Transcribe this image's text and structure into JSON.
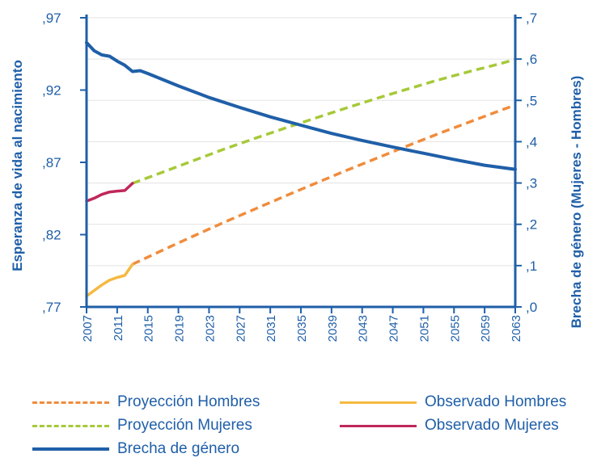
{
  "chart_data": {
    "type": "line",
    "xlabel": "",
    "ylabel_left": "Esperanza de vida al nacimiento",
    "ylabel_right": "Brecha de género (Mujeres - Hombres)",
    "xlim": [
      2007,
      2063
    ],
    "ylim_left": [
      0.77,
      0.97
    ],
    "ylim_right": [
      0.0,
      0.7
    ],
    "yticks_left": [
      ",77",
      ",82",
      ",87",
      ",92",
      ",97"
    ],
    "yticks_right": [
      ",0",
      ",1",
      ",2",
      ",3",
      ",4",
      ",5",
      ",6",
      ",7"
    ],
    "xticks": [
      "2007",
      "2011",
      "2015",
      "2019",
      "2023",
      "2027",
      "2031",
      "2035",
      "2039",
      "2043",
      "2047",
      "2051",
      "2055",
      "2059",
      "2063"
    ],
    "grid": "horizontal",
    "legend_position": "bottom",
    "series": [
      {
        "name": "Proyección Hombres",
        "axis": "left",
        "style": "dashed",
        "color": "#f08c3c",
        "x": [
          2013,
          2017,
          2021,
          2025,
          2029,
          2033,
          2037,
          2041,
          2045,
          2049,
          2053,
          2057,
          2061,
          2063
        ],
        "y": [
          0.7995,
          0.8094,
          0.8191,
          0.8286,
          0.8377,
          0.8468,
          0.8557,
          0.8645,
          0.8731,
          0.8816,
          0.8899,
          0.8979,
          0.9058,
          0.9096
        ]
      },
      {
        "name": "Observado Hombres",
        "axis": "left",
        "style": "solid",
        "color": "#f5b942",
        "x": [
          2007,
          2008,
          2009,
          2010,
          2011,
          2012,
          2013
        ],
        "y": [
          0.7775,
          0.7814,
          0.7852,
          0.7885,
          0.7904,
          0.7918,
          0.7995
        ]
      },
      {
        "name": "Proyección Mujeres",
        "axis": "left",
        "style": "dashed",
        "color": "#a6c938",
        "x": [
          2013,
          2017,
          2021,
          2025,
          2029,
          2033,
          2037,
          2041,
          2045,
          2049,
          2053,
          2057,
          2061,
          2063
        ],
        "y": [
          0.8555,
          0.8633,
          0.8713,
          0.8792,
          0.8866,
          0.8938,
          0.9008,
          0.9077,
          0.9144,
          0.9208,
          0.9271,
          0.9328,
          0.9382,
          0.9412
        ]
      },
      {
        "name": "Observado Mujeres",
        "axis": "left",
        "style": "solid",
        "color": "#c0275a",
        "x": [
          2007,
          2008,
          2009,
          2010,
          2011,
          2012,
          2013
        ],
        "y": [
          0.8432,
          0.8452,
          0.8478,
          0.8495,
          0.8501,
          0.8505,
          0.8555
        ]
      },
      {
        "name": "Brecha de género",
        "axis": "right",
        "style": "solid",
        "color": "#1f5fa8",
        "x": [
          2007,
          2008,
          2009,
          2010,
          2011,
          2012,
          2013,
          2014,
          2015,
          2019,
          2023,
          2027,
          2031,
          2035,
          2039,
          2043,
          2047,
          2051,
          2055,
          2059,
          2063
        ],
        "y": [
          0.64,
          0.62,
          0.61,
          0.607,
          0.595,
          0.585,
          0.57,
          0.572,
          0.565,
          0.535,
          0.507,
          0.483,
          0.46,
          0.44,
          0.42,
          0.403,
          0.387,
          0.372,
          0.357,
          0.343,
          0.333
        ]
      }
    ]
  }
}
